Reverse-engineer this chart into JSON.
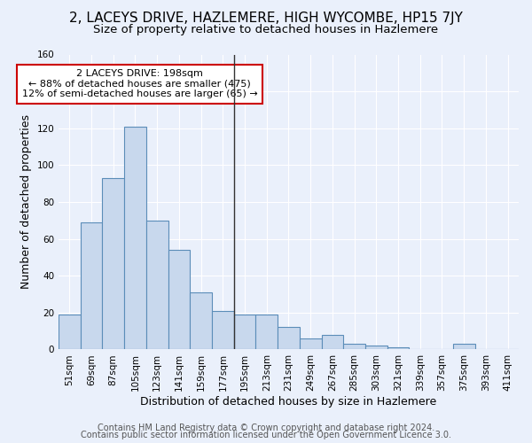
{
  "title": "2, LACEYS DRIVE, HAZLEMERE, HIGH WYCOMBE, HP15 7JY",
  "subtitle": "Size of property relative to detached houses in Hazlemere",
  "xlabel": "Distribution of detached houses by size in Hazlemere",
  "ylabel": "Number of detached properties",
  "categories": [
    "51sqm",
    "69sqm",
    "87sqm",
    "105sqm",
    "123sqm",
    "141sqm",
    "159sqm",
    "177sqm",
    "195sqm",
    "213sqm",
    "231sqm",
    "249sqm",
    "267sqm",
    "285sqm",
    "303sqm",
    "321sqm",
    "339sqm",
    "357sqm",
    "375sqm",
    "393sqm",
    "411sqm"
  ],
  "values": [
    19,
    69,
    93,
    121,
    70,
    54,
    31,
    21,
    19,
    19,
    12,
    6,
    8,
    3,
    2,
    1,
    0,
    0,
    3,
    0,
    0
  ],
  "bar_color": "#c8d8ed",
  "bar_edge_color": "#5b8db8",
  "background_color": "#eaf0fb",
  "grid_color": "#ffffff",
  "vline_x": 7.5,
  "vline_color": "#333333",
  "annotation_text": "2 LACEYS DRIVE: 198sqm\n← 88% of detached houses are smaller (475)\n12% of semi-detached houses are larger (65) →",
  "annotation_box_color": "#ffffff",
  "annotation_edge_color": "#cc0000",
  "ylim": [
    0,
    160
  ],
  "yticks": [
    0,
    20,
    40,
    60,
    80,
    100,
    120,
    140,
    160
  ],
  "footer_line1": "Contains HM Land Registry data © Crown copyright and database right 2024.",
  "footer_line2": "Contains public sector information licensed under the Open Government Licence 3.0.",
  "title_fontsize": 11,
  "subtitle_fontsize": 9.5,
  "axis_label_fontsize": 9,
  "tick_fontsize": 7.5,
  "footer_fontsize": 7
}
